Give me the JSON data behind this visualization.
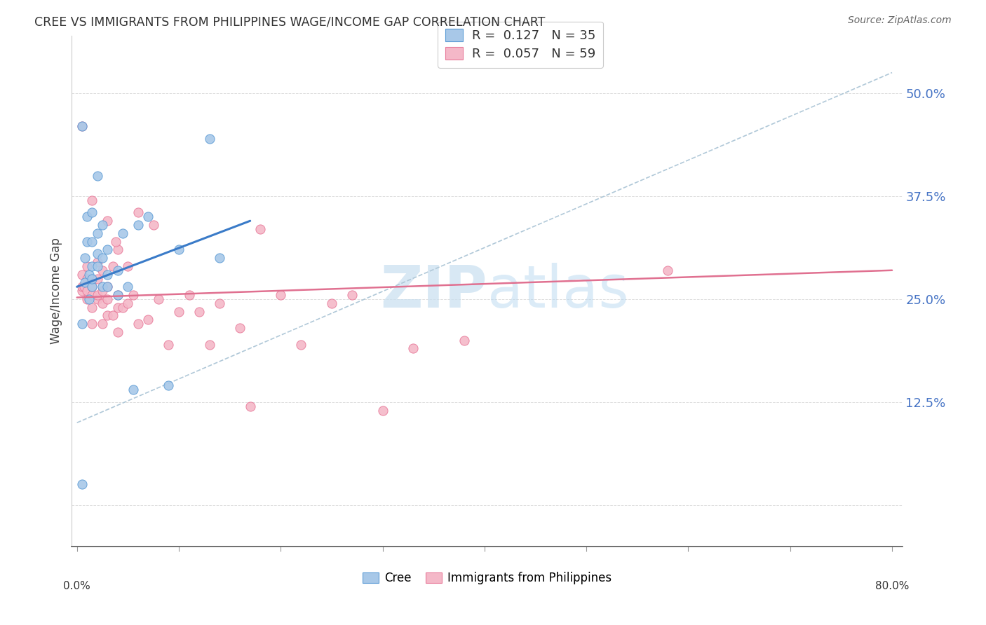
{
  "title": "CREE VS IMMIGRANTS FROM PHILIPPINES WAGE/INCOME GAP CORRELATION CHART",
  "source": "Source: ZipAtlas.com",
  "ylabel": "Wage/Income Gap",
  "legend_label1": "Cree",
  "legend_label2": "Immigrants from Philippines",
  "r1": "0.127",
  "n1": "35",
  "r2": "0.057",
  "n2": "59",
  "color_blue_fill": "#a8c8e8",
  "color_blue_edge": "#5b9bd5",
  "color_pink_fill": "#f4b8c8",
  "color_pink_edge": "#e87a9a",
  "color_trendline_blue": "#3a7bc8",
  "color_trendline_pink": "#e07090",
  "color_trendline_dashed": "#b0c8d8",
  "watermark_color": "#c8dff0",
  "ytick_color": "#4472c4",
  "yticks": [
    0.0,
    0.125,
    0.25,
    0.375,
    0.5
  ],
  "ytick_labels": [
    "",
    "12.5%",
    "25.0%",
    "37.5%",
    "50.0%"
  ],
  "xlim": [
    0.0,
    0.8
  ],
  "ylim": [
    -0.05,
    0.57
  ],
  "blue_points_x": [
    0.005,
    0.005,
    0.008,
    0.008,
    0.01,
    0.01,
    0.012,
    0.012,
    0.015,
    0.015,
    0.015,
    0.015,
    0.015,
    0.02,
    0.02,
    0.02,
    0.02,
    0.025,
    0.025,
    0.025,
    0.03,
    0.03,
    0.03,
    0.04,
    0.04,
    0.045,
    0.05,
    0.055,
    0.06,
    0.07,
    0.09,
    0.1,
    0.13,
    0.14,
    0.005
  ],
  "blue_points_y": [
    0.025,
    0.22,
    0.27,
    0.3,
    0.32,
    0.35,
    0.25,
    0.28,
    0.265,
    0.275,
    0.29,
    0.32,
    0.355,
    0.29,
    0.305,
    0.33,
    0.4,
    0.265,
    0.3,
    0.34,
    0.265,
    0.28,
    0.31,
    0.255,
    0.285,
    0.33,
    0.265,
    0.14,
    0.34,
    0.35,
    0.145,
    0.31,
    0.445,
    0.3,
    0.46
  ],
  "pink_points_x": [
    0.005,
    0.005,
    0.005,
    0.005,
    0.007,
    0.01,
    0.01,
    0.01,
    0.01,
    0.015,
    0.015,
    0.015,
    0.015,
    0.015,
    0.02,
    0.02,
    0.02,
    0.02,
    0.025,
    0.025,
    0.025,
    0.025,
    0.03,
    0.03,
    0.03,
    0.03,
    0.035,
    0.035,
    0.04,
    0.04,
    0.04,
    0.04,
    0.045,
    0.05,
    0.05,
    0.055,
    0.06,
    0.06,
    0.07,
    0.075,
    0.08,
    0.09,
    0.1,
    0.11,
    0.12,
    0.13,
    0.14,
    0.16,
    0.17,
    0.18,
    0.2,
    0.22,
    0.25,
    0.27,
    0.3,
    0.33,
    0.38,
    0.58,
    0.038
  ],
  "pink_points_y": [
    0.26,
    0.265,
    0.28,
    0.46,
    0.265,
    0.25,
    0.26,
    0.275,
    0.29,
    0.22,
    0.24,
    0.255,
    0.265,
    0.37,
    0.25,
    0.255,
    0.275,
    0.295,
    0.22,
    0.245,
    0.26,
    0.285,
    0.23,
    0.25,
    0.265,
    0.345,
    0.23,
    0.29,
    0.21,
    0.24,
    0.255,
    0.31,
    0.24,
    0.245,
    0.29,
    0.255,
    0.22,
    0.355,
    0.225,
    0.34,
    0.25,
    0.195,
    0.235,
    0.255,
    0.235,
    0.195,
    0.245,
    0.215,
    0.12,
    0.335,
    0.255,
    0.195,
    0.245,
    0.255,
    0.115,
    0.19,
    0.2,
    0.285,
    0.32
  ]
}
